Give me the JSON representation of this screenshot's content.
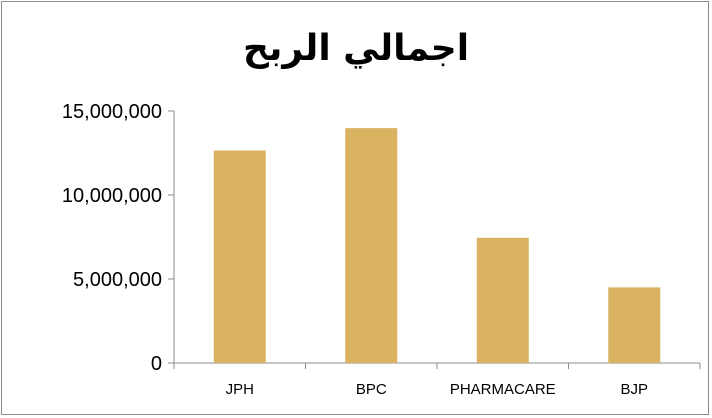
{
  "chart_data": {
    "type": "bar",
    "title": "اجمالي الربح",
    "xlabel": "",
    "ylabel": "",
    "categories": [
      "JPH",
      "BPC",
      "PHARMACARE",
      "BJP"
    ],
    "values": [
      12650000,
      13980000,
      7450000,
      4500000
    ],
    "ylim": [
      0,
      15000000
    ],
    "yticks": [
      "0",
      "5,000,000",
      "10,000,000",
      "15,000,000"
    ],
    "ytick_values": [
      0,
      5000000,
      10000000,
      15000000
    ],
    "bar_color": "#D9B262",
    "axis_color": "#8c8c8c",
    "grid": false,
    "legend": "none"
  }
}
